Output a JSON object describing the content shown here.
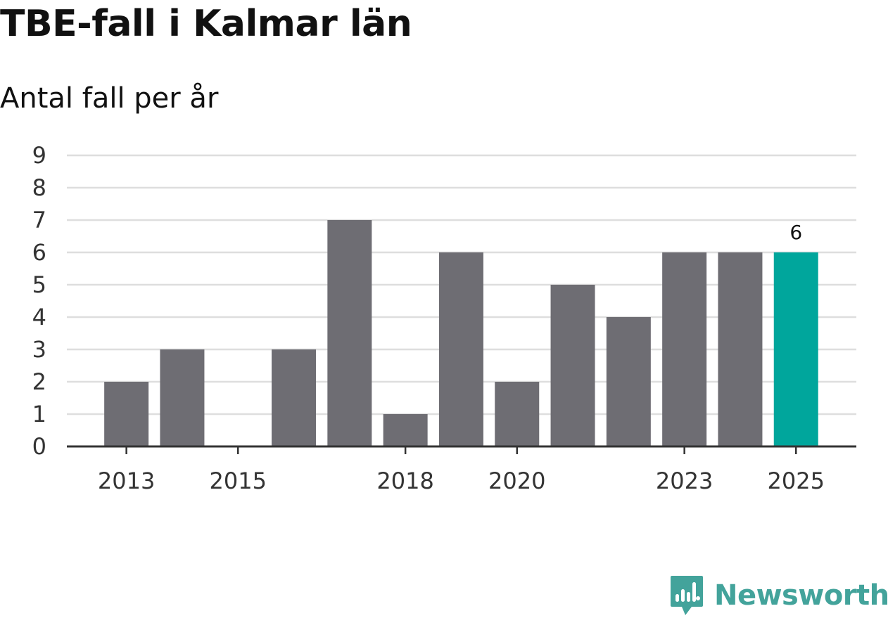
{
  "title": "TBE-fall i Kalmar län",
  "subtitle": "Antal fall per år",
  "chart_data": {
    "type": "bar",
    "categories": [
      "2013",
      "2014",
      "2015",
      "2016",
      "2017",
      "2018",
      "2019",
      "2020",
      "2021",
      "2022",
      "2023",
      "2024",
      "2025"
    ],
    "values": [
      2,
      3,
      0,
      3,
      7,
      1,
      6,
      2,
      5,
      4,
      6,
      6,
      6
    ],
    "x_tick_labels": [
      "2013",
      "2015",
      "2018",
      "2020",
      "2023",
      "2025"
    ],
    "y_ticks": [
      0,
      1,
      2,
      3,
      4,
      5,
      6,
      7,
      8,
      9
    ],
    "ylim": [
      0,
      9
    ],
    "grid": true,
    "highlight": {
      "category": "2025",
      "label": "6"
    },
    "colors": {
      "bar": "#6e6d73",
      "highlight": "#00a69c",
      "grid": "#dedede",
      "axis": "#333333",
      "label": "#333333"
    },
    "xlabel": "",
    "ylabel": ""
  },
  "brand": {
    "name": "Newsworthy",
    "color": "#43a39b"
  }
}
